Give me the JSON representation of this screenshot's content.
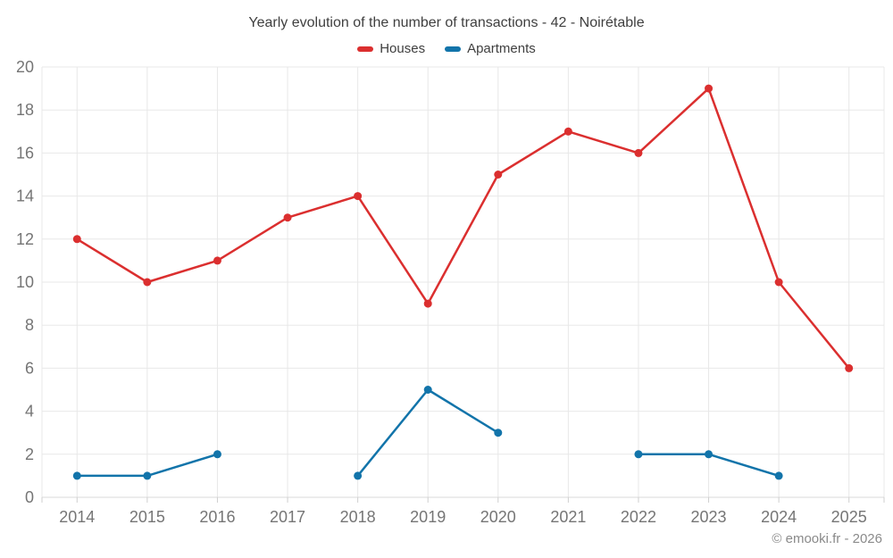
{
  "title": "Yearly evolution of the number of transactions - 42 - Noirétable",
  "watermark": "© emooki.fr - 2026",
  "colors": {
    "houses": "#db2f2f",
    "apartments": "#1274aa",
    "grid": "#e8e8e8",
    "axis_line": "#d9d9d9",
    "tick": "#cfcfcf",
    "axis_label": "#757575"
  },
  "chart_data": {
    "type": "line",
    "title": "Yearly evolution of the number of transactions - 42 - Noirétable",
    "x": [
      "2014",
      "2015",
      "2016",
      "2017",
      "2018",
      "2019",
      "2020",
      "2021",
      "2022",
      "2023",
      "2024",
      "2025"
    ],
    "series": [
      {
        "name": "Houses",
        "color": "#db2f2f",
        "values": [
          12,
          10,
          11,
          13,
          14,
          9,
          15,
          17,
          16,
          19,
          10,
          6
        ]
      },
      {
        "name": "Apartments",
        "color": "#1274aa",
        "values": [
          1,
          1,
          2,
          null,
          1,
          5,
          3,
          null,
          2,
          2,
          1,
          null
        ]
      }
    ],
    "xlabel": "",
    "ylabel": "",
    "ylim": [
      0,
      20
    ],
    "ytick_step": 2,
    "grid": true,
    "legend_position": "top",
    "point_markers": true
  }
}
